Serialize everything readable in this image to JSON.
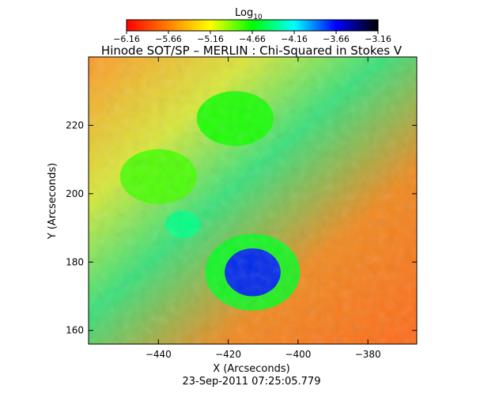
{
  "colorbar": {
    "label_main": "Log",
    "label_sub": "10",
    "ticks": [
      "-6.16",
      "-5.66",
      "-5.16",
      "-4.66",
      "-4.16",
      "-3.66",
      "-3.16"
    ],
    "range": [
      -6.16,
      -3.16
    ],
    "stops": [
      "#ff0000",
      "#ff8000",
      "#ffff00",
      "#00ff00",
      "#00ffff",
      "#0000ff",
      "#000000"
    ]
  },
  "chart_data": {
    "type": "heatmap",
    "title": "Hinode SOT/SP – MERLIN : Chi-Squared in Stokes V",
    "xlabel": "X (Arcseconds)",
    "ylabel": "Y (Arcseconds)",
    "xlim": [
      -460,
      -366
    ],
    "ylim": [
      156,
      240
    ],
    "x_ticks": [
      -440,
      -420,
      -400,
      -380
    ],
    "x_tick_labels": [
      "−440",
      "−420",
      "−400",
      "−380"
    ],
    "y_ticks": [
      160,
      180,
      200,
      220
    ],
    "y_tick_labels": [
      "160",
      "180",
      "200",
      "220"
    ],
    "value_range_log10": [
      -6.16,
      -3.16
    ],
    "features": [
      {
        "kind": "sunspot-umbra",
        "x": -413,
        "y": 177,
        "log10_value": -3.7
      },
      {
        "kind": "blue-ring",
        "x": -433,
        "y": 191,
        "log10_value": -4.4
      },
      {
        "kind": "cyan-region",
        "x": -440,
        "y": 205,
        "log10_value": -4.8
      },
      {
        "kind": "cyan-region",
        "x": -418,
        "y": 222,
        "log10_value": -4.7
      }
    ]
  },
  "timestamp": "23-Sep-2011 07:25:05.779"
}
